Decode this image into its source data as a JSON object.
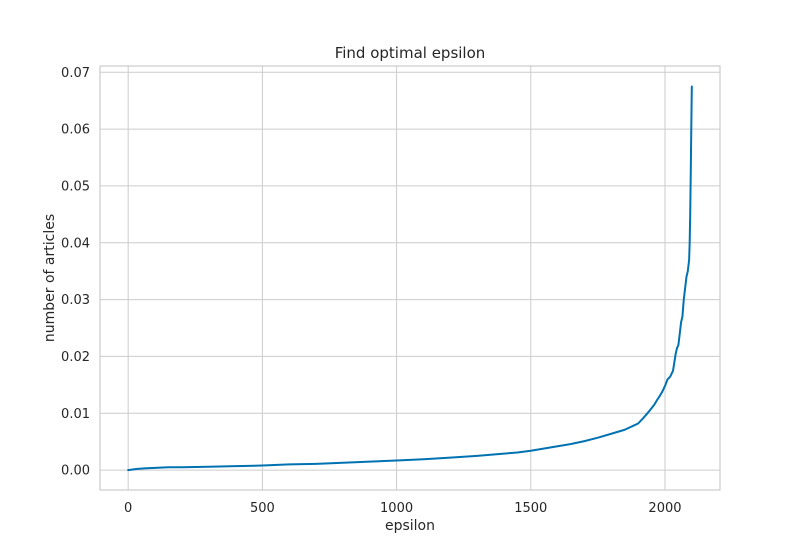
{
  "chart_data": {
    "type": "line",
    "title": "Find optimal epsilon",
    "xlabel": "epsilon",
    "ylabel": "number of articles",
    "xlim": [
      -105,
      2205
    ],
    "ylim": [
      -0.0035,
      0.0711
    ],
    "xticks": [
      0,
      500,
      1000,
      1500,
      2000
    ],
    "yticks": [
      0.0,
      0.01,
      0.02,
      0.03,
      0.04,
      0.05,
      0.06,
      0.07
    ],
    "ytick_labels": [
      "0.00",
      "0.01",
      "0.02",
      "0.03",
      "0.04",
      "0.05",
      "0.06",
      "0.07"
    ],
    "grid": true,
    "line_color": "#0072b2",
    "series": [
      {
        "x": [
          0,
          30,
          60,
          100,
          150,
          200,
          300,
          400,
          500,
          600,
          700,
          800,
          900,
          1000,
          1100,
          1200,
          1300,
          1400,
          1450,
          1500,
          1550,
          1600,
          1650,
          1700,
          1750,
          1800,
          1850,
          1900,
          1920,
          1940,
          1960,
          1970,
          1980,
          1990,
          2000,
          2010,
          2015,
          2020,
          2030,
          2040,
          2045,
          2050,
          2055,
          2060,
          2065,
          2070,
          2075,
          2080,
          2085,
          2090,
          2092,
          2094,
          2096,
          2098,
          2100
        ],
        "y": [
          0.0,
          0.0002,
          0.0003,
          0.0004,
          0.0005,
          0.0005,
          0.0006,
          0.0007,
          0.0008,
          0.001,
          0.0011,
          0.0013,
          0.0015,
          0.0017,
          0.0019,
          0.0022,
          0.0025,
          0.0029,
          0.0031,
          0.0034,
          0.0038,
          0.0042,
          0.0046,
          0.0051,
          0.0057,
          0.0064,
          0.0071,
          0.0082,
          0.0092,
          0.0103,
          0.0115,
          0.0123,
          0.013,
          0.0138,
          0.0148,
          0.016,
          0.0162,
          0.0165,
          0.0175,
          0.0205,
          0.0215,
          0.022,
          0.024,
          0.026,
          0.027,
          0.03,
          0.032,
          0.034,
          0.035,
          0.037,
          0.04,
          0.045,
          0.052,
          0.06,
          0.0675
        ]
      }
    ]
  }
}
